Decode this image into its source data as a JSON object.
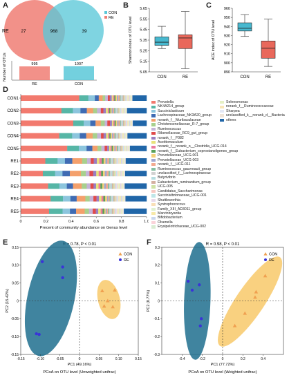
{
  "panels": {
    "a": "A",
    "b": "B",
    "c": "C",
    "d": "D",
    "e": "E",
    "f": "F"
  },
  "colors": {
    "con": "#5bc8d8",
    "re": "#f07e74",
    "con_box": "#47b8cf",
    "re_box": "#e9685b",
    "pcoa_con": "#f0a050",
    "pcoa_re": "#3a34d8",
    "ellipse_con": "#f8c560",
    "ellipse_re": "#1e6f8e"
  },
  "venn": {
    "legend": [
      "CON",
      "RE"
    ],
    "side_label": "RE",
    "left_only": "27",
    "overlap": "968",
    "right_only": "39",
    "bar_ylabel": "Number of OTUs",
    "bars": [
      {
        "label": "RE",
        "value": 995
      },
      {
        "label": "CON",
        "value": 1007
      }
    ]
  },
  "chart_data": [
    {
      "type": "box",
      "ylabel": "Shannon index of OTU level",
      "ylim": [
        5.05,
        5.65
      ],
      "yticks": [
        "5.65",
        "5.55",
        "5.45",
        "5.35",
        "5.25",
        "5.15",
        "5.05"
      ],
      "categories": [
        "CON",
        "RE"
      ],
      "boxes": [
        {
          "name": "CON",
          "min": 5.27,
          "q1": 5.3,
          "median": 5.33,
          "q3": 5.38,
          "max": 5.48
        },
        {
          "name": "RE",
          "min": 5.08,
          "q1": 5.27,
          "median": 5.37,
          "q3": 5.4,
          "max": 5.62
        }
      ]
    },
    {
      "type": "box",
      "ylabel": "ACE index of OTU level",
      "ylim": [
        890,
        960
      ],
      "yticks": [
        "960",
        "950",
        "940",
        "930",
        "920",
        "910",
        "900",
        "890"
      ],
      "categories": [
        "CON",
        "RE"
      ],
      "boxes": [
        {
          "name": "CON",
          "min": 929,
          "q1": 935,
          "median": 938,
          "q3": 944,
          "max": 953
        },
        {
          "name": "RE",
          "min": 896,
          "q1": 905,
          "median": 916,
          "q3": 924,
          "max": 948
        }
      ]
    },
    {
      "type": "stacked_bar",
      "xlabel": "Precent of community abundance on Genus level",
      "xticks": [
        "0",
        "0.2",
        "0.4",
        "0.6",
        "0.8",
        "1.0"
      ],
      "samples": [
        "CON1",
        "CON2",
        "CON3",
        "CON4",
        "CON5",
        "RE1",
        "RE2",
        "RE3",
        "RE4",
        "RE5"
      ],
      "genera": [
        {
          "name": "Prevotella",
          "color": "#f27a6e"
        },
        {
          "name": "NK4A214_group",
          "color": "#56b6a6"
        },
        {
          "name": "Succiniclasticum",
          "color": "#8cc5dd"
        },
        {
          "name": "Lachnospiraceae_NK3A20_group",
          "color": "#3f6bb3"
        },
        {
          "name": "norank_f__Muribaculaceae",
          "color": "#f4a06c"
        },
        {
          "name": "Christensenellaceae_R-7_group",
          "color": "#a8d08d"
        },
        {
          "name": "Ruminococcus",
          "color": "#c5b3d8"
        },
        {
          "name": "Rikenellaceae_RC9_gut_group",
          "color": "#e04a4a"
        },
        {
          "name": "norank_f__F082",
          "color": "#9a7ec0"
        },
        {
          "name": "Acetitomaculum",
          "color": "#e8e27a"
        },
        {
          "name": "norank_f__norank_o__Clostridia_UCG-014",
          "color": "#e97a9d"
        },
        {
          "name": "norank_f__Eubacterium_coprostanoligenes_group",
          "color": "#5aa15a"
        },
        {
          "name": "Prevotellaceae_UCG-001",
          "color": "#f5d17a"
        },
        {
          "name": "Prevotellaceae_UCG-003",
          "color": "#a0a7d0"
        },
        {
          "name": "norank_f__UCG-011",
          "color": "#f3a98f"
        },
        {
          "name": "Ruminococcus_gauvreauii_group",
          "color": "#86bfa2"
        },
        {
          "name": "unclassified_f__Lachnospiraceae",
          "color": "#d1d1d1"
        },
        {
          "name": "Butyrivibrio",
          "color": "#b5dde0"
        },
        {
          "name": "Eubacterium_ruminantium_group",
          "color": "#d4b0a0"
        },
        {
          "name": "UCG-005",
          "color": "#cfe3a6"
        },
        {
          "name": "Candidatus_Saccharimonas",
          "color": "#f6c8c2"
        },
        {
          "name": "Succinivibrionaceae_UCG-001",
          "color": "#bfe6e8"
        },
        {
          "name": "Shuttleworthia",
          "color": "#e8d8ea"
        },
        {
          "name": "Syntrophococcus",
          "color": "#f9dfb7"
        },
        {
          "name": "Family_XIII_AD3011_group",
          "color": "#dff0d0"
        },
        {
          "name": "Marvinbryantia",
          "color": "#f7e9a8"
        },
        {
          "name": "Bifidobacterium",
          "color": "#c9d7ee"
        },
        {
          "name": "Olsenella",
          "color": "#fad3d9"
        },
        {
          "name": "Erysipelotrichaceae_UCG-002",
          "color": "#d9ecd3"
        },
        {
          "name": "Selenomonas",
          "color": "#e6f0c4"
        },
        {
          "name": "norank_f__Ruminococcaceae",
          "color": "#f9e6b8"
        },
        {
          "name": "Sharpea",
          "color": "#e4e8f5"
        },
        {
          "name": "unclassified_k__norank_d__Bacteria",
          "color": "#f0e4d8"
        },
        {
          "name": "others",
          "color": "#2066a8"
        }
      ],
      "values": [
        [
          0.45,
          0.07,
          0.05,
          0.03,
          0.03,
          0.02,
          0.02,
          0.015,
          0.015,
          0.01,
          0.01,
          0.01,
          0.01,
          0.01,
          0.01,
          0.008,
          0.008,
          0.008,
          0.008,
          0.007,
          0.006,
          0.006,
          0.006,
          0.005,
          0.005,
          0.005,
          0.005,
          0.004,
          0.004,
          0.004,
          0.004,
          0.003,
          0.003,
          0.109
        ],
        [
          0.32,
          0.09,
          0.06,
          0.05,
          0.05,
          0.03,
          0.03,
          0.02,
          0.02,
          0.015,
          0.01,
          0.01,
          0.01,
          0.01,
          0.01,
          0.01,
          0.008,
          0.008,
          0.008,
          0.007,
          0.006,
          0.006,
          0.006,
          0.005,
          0.005,
          0.005,
          0.005,
          0.004,
          0.004,
          0.004,
          0.004,
          0.003,
          0.003,
          0.154
        ],
        [
          0.4,
          0.08,
          0.05,
          0.04,
          0.04,
          0.03,
          0.02,
          0.02,
          0.015,
          0.01,
          0.01,
          0.01,
          0.01,
          0.01,
          0.01,
          0.008,
          0.008,
          0.008,
          0.008,
          0.007,
          0.006,
          0.006,
          0.006,
          0.005,
          0.005,
          0.005,
          0.005,
          0.004,
          0.004,
          0.004,
          0.004,
          0.003,
          0.003,
          0.105
        ],
        [
          0.3,
          0.1,
          0.06,
          0.05,
          0.05,
          0.035,
          0.03,
          0.02,
          0.02,
          0.015,
          0.01,
          0.01,
          0.01,
          0.01,
          0.01,
          0.01,
          0.008,
          0.008,
          0.008,
          0.007,
          0.006,
          0.006,
          0.006,
          0.005,
          0.005,
          0.005,
          0.005,
          0.004,
          0.004,
          0.004,
          0.004,
          0.003,
          0.003,
          0.149
        ],
        [
          0.36,
          0.09,
          0.06,
          0.045,
          0.04,
          0.03,
          0.025,
          0.02,
          0.015,
          0.01,
          0.01,
          0.01,
          0.01,
          0.01,
          0.01,
          0.01,
          0.008,
          0.008,
          0.008,
          0.007,
          0.006,
          0.006,
          0.006,
          0.005,
          0.005,
          0.005,
          0.005,
          0.004,
          0.004,
          0.004,
          0.004,
          0.003,
          0.003,
          0.129
        ],
        [
          0.2,
          0.1,
          0.06,
          0.06,
          0.08,
          0.04,
          0.03,
          0.025,
          0.025,
          0.02,
          0.02,
          0.015,
          0.015,
          0.015,
          0.015,
          0.012,
          0.01,
          0.01,
          0.01,
          0.01,
          0.008,
          0.008,
          0.008,
          0.007,
          0.007,
          0.007,
          0.006,
          0.006,
          0.006,
          0.005,
          0.005,
          0.005,
          0.005,
          0.17
        ],
        [
          0.18,
          0.1,
          0.06,
          0.06,
          0.09,
          0.04,
          0.03,
          0.03,
          0.025,
          0.02,
          0.02,
          0.015,
          0.015,
          0.015,
          0.015,
          0.012,
          0.01,
          0.01,
          0.01,
          0.01,
          0.008,
          0.008,
          0.008,
          0.007,
          0.007,
          0.007,
          0.006,
          0.006,
          0.006,
          0.005,
          0.005,
          0.005,
          0.005,
          0.175
        ],
        [
          0.22,
          0.09,
          0.06,
          0.05,
          0.07,
          0.04,
          0.03,
          0.025,
          0.02,
          0.02,
          0.015,
          0.015,
          0.015,
          0.015,
          0.015,
          0.012,
          0.01,
          0.01,
          0.01,
          0.01,
          0.008,
          0.008,
          0.008,
          0.007,
          0.007,
          0.007,
          0.006,
          0.006,
          0.006,
          0.005,
          0.005,
          0.005,
          0.005,
          0.176
        ],
        [
          0.24,
          0.1,
          0.06,
          0.05,
          0.07,
          0.035,
          0.03,
          0.025,
          0.02,
          0.02,
          0.015,
          0.015,
          0.015,
          0.01,
          0.01,
          0.01,
          0.01,
          0.01,
          0.01,
          0.008,
          0.008,
          0.008,
          0.007,
          0.007,
          0.007,
          0.006,
          0.006,
          0.006,
          0.005,
          0.005,
          0.005,
          0.005,
          0.005,
          0.17
        ],
        [
          0.23,
          0.11,
          0.06,
          0.05,
          0.07,
          0.035,
          0.03,
          0.025,
          0.02,
          0.02,
          0.015,
          0.015,
          0.01,
          0.01,
          0.01,
          0.01,
          0.01,
          0.01,
          0.01,
          0.008,
          0.008,
          0.008,
          0.007,
          0.007,
          0.007,
          0.006,
          0.006,
          0.006,
          0.005,
          0.005,
          0.005,
          0.005,
          0.005,
          0.185
        ]
      ]
    },
    {
      "type": "scatter",
      "title": "R = 0.78, P < 0.01",
      "xlabel": "PC1 (49.16%)",
      "ylabel": "PC2 (15.42%)",
      "caption": "PCoA on OTU level (Unweighted unifrac)",
      "xlim": [
        -0.15,
        0.15
      ],
      "ylim": [
        -0.15,
        0.15
      ],
      "xticks": [
        "-0.15",
        "-0.10",
        "-0.05",
        "0",
        "0.05",
        "0.10",
        "0.15"
      ],
      "yticks": [
        "-0.15",
        "-0.10",
        "-0.05",
        "0",
        "0.05",
        "0.10",
        "0.15"
      ],
      "series": [
        {
          "name": "CON",
          "marker": "triangle",
          "points": [
            [
              0.058,
              0.028
            ],
            [
              0.09,
              0.03
            ],
            [
              0.072,
              0.0
            ],
            [
              0.063,
              -0.015
            ],
            [
              0.085,
              -0.017
            ]
          ],
          "ellipse": {
            "cx": 0.075,
            "cy": 0.004,
            "rx": 0.028,
            "ry": 0.056,
            "rot": -14
          }
        },
        {
          "name": "RE",
          "marker": "circle",
          "points": [
            [
              -0.095,
              0.11
            ],
            [
              -0.043,
              0.095
            ],
            [
              -0.043,
              0.065
            ],
            [
              -0.11,
              -0.092
            ],
            [
              -0.103,
              -0.094
            ]
          ],
          "ellipse": {
            "cx": -0.073,
            "cy": 0.007,
            "rx": 0.06,
            "ry": 0.165,
            "rot": 12
          }
        }
      ]
    },
    {
      "type": "scatter",
      "title": "R = 0.98, P < 0.01",
      "xlabel": "PC1 (77.72%)",
      "ylabel": "PC2 (8.77%)",
      "caption": "PCoA on OTU level (Weighted unifrac)",
      "xlim": [
        -0.6,
        0.6
      ],
      "ylim": [
        -0.3,
        0.3
      ],
      "xticks": [
        "-0.4",
        "-0.2",
        "0",
        "0.2",
        "0.4"
      ],
      "yticks": [
        "-0.3",
        "-0.2",
        "-0.1",
        "0",
        "0.1",
        "0.2",
        "0.3"
      ],
      "series": [
        {
          "name": "CON",
          "marker": "triangle",
          "points": [
            [
              0.12,
              -0.14
            ],
            [
              0.22,
              -0.07
            ],
            [
              0.32,
              0.02
            ],
            [
              0.33,
              0.05
            ],
            [
              0.42,
              0.14
            ]
          ],
          "ellipse": {
            "cx": 0.27,
            "cy": -0.004,
            "rx": 0.14,
            "ry": 0.3,
            "rot": 34
          }
        },
        {
          "name": "RE",
          "marker": "circle",
          "points": [
            [
              -0.34,
              0.11
            ],
            [
              -0.23,
              0.09
            ],
            [
              -0.3,
              0.06
            ],
            [
              -0.21,
              -0.1
            ],
            [
              -0.22,
              -0.14
            ]
          ],
          "ellipse": {
            "cx": -0.25,
            "cy": 0.0,
            "rx": 0.13,
            "ry": 0.33,
            "rot": 2
          }
        }
      ]
    }
  ]
}
